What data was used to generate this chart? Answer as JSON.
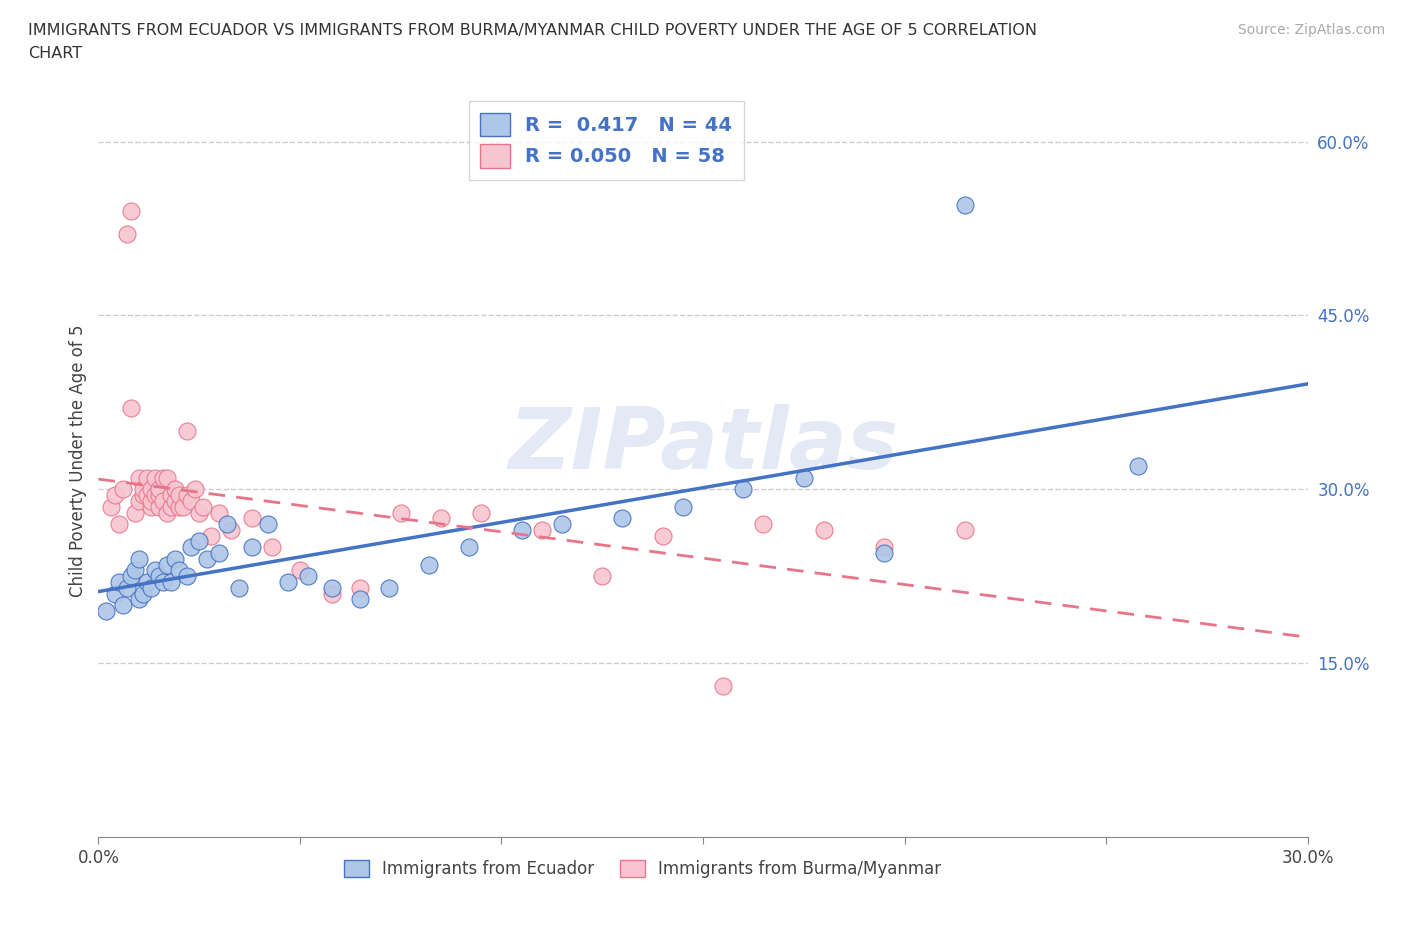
{
  "title_line1": "IMMIGRANTS FROM ECUADOR VS IMMIGRANTS FROM BURMA/MYANMAR CHILD POVERTY UNDER THE AGE OF 5 CORRELATION",
  "title_line2": "CHART",
  "source": "Source: ZipAtlas.com",
  "ylabel": "Child Poverty Under the Age of 5",
  "xlim": [
    0.0,
    0.3
  ],
  "ylim": [
    0.0,
    0.65
  ],
  "x_ticks": [
    0.0,
    0.05,
    0.1,
    0.15,
    0.2,
    0.25,
    0.3
  ],
  "x_tick_labels": [
    "0.0%",
    "",
    "",
    "",
    "",
    "",
    "30.0%"
  ],
  "y_ticks_right": [
    0.15,
    0.3,
    0.45,
    0.6
  ],
  "y_tick_labels_right": [
    "15.0%",
    "30.0%",
    "45.0%",
    "60.0%"
  ],
  "R_ecuador": 0.417,
  "N_ecuador": 44,
  "R_burma": 0.05,
  "N_burma": 58,
  "watermark": "ZIPatlas",
  "ecuador_face_color": "#aec6e8",
  "ecuador_edge_color": "#4472c4",
  "burma_face_color": "#f7c5d0",
  "burma_edge_color": "#e8748a",
  "ecuador_line_color": "#4472c4",
  "burma_line_color": "#e8748a",
  "ecuador_scatter_x": [
    0.002,
    0.004,
    0.005,
    0.006,
    0.007,
    0.008,
    0.009,
    0.01,
    0.01,
    0.011,
    0.012,
    0.013,
    0.014,
    0.015,
    0.016,
    0.017,
    0.018,
    0.019,
    0.02,
    0.022,
    0.023,
    0.025,
    0.027,
    0.03,
    0.032,
    0.035,
    0.038,
    0.042,
    0.047,
    0.052,
    0.058,
    0.065,
    0.072,
    0.082,
    0.092,
    0.105,
    0.115,
    0.13,
    0.145,
    0.16,
    0.175,
    0.195,
    0.215,
    0.258
  ],
  "ecuador_scatter_y": [
    0.195,
    0.21,
    0.22,
    0.2,
    0.215,
    0.225,
    0.23,
    0.205,
    0.24,
    0.21,
    0.22,
    0.215,
    0.23,
    0.225,
    0.22,
    0.235,
    0.22,
    0.24,
    0.23,
    0.225,
    0.25,
    0.255,
    0.24,
    0.245,
    0.27,
    0.215,
    0.25,
    0.27,
    0.22,
    0.225,
    0.215,
    0.205,
    0.215,
    0.235,
    0.25,
    0.265,
    0.27,
    0.275,
    0.285,
    0.3,
    0.31,
    0.245,
    0.545,
    0.32
  ],
  "burma_scatter_x": [
    0.003,
    0.004,
    0.005,
    0.006,
    0.007,
    0.008,
    0.008,
    0.009,
    0.01,
    0.01,
    0.011,
    0.011,
    0.012,
    0.012,
    0.013,
    0.013,
    0.013,
    0.014,
    0.014,
    0.015,
    0.015,
    0.015,
    0.016,
    0.016,
    0.017,
    0.017,
    0.018,
    0.018,
    0.019,
    0.019,
    0.02,
    0.02,
    0.021,
    0.022,
    0.022,
    0.023,
    0.024,
    0.025,
    0.026,
    0.028,
    0.03,
    0.033,
    0.038,
    0.043,
    0.05,
    0.058,
    0.065,
    0.075,
    0.085,
    0.095,
    0.11,
    0.125,
    0.14,
    0.155,
    0.165,
    0.18,
    0.195,
    0.215
  ],
  "burma_scatter_y": [
    0.285,
    0.295,
    0.27,
    0.3,
    0.52,
    0.54,
    0.37,
    0.28,
    0.29,
    0.31,
    0.295,
    0.3,
    0.295,
    0.31,
    0.285,
    0.29,
    0.3,
    0.295,
    0.31,
    0.285,
    0.295,
    0.3,
    0.29,
    0.31,
    0.28,
    0.31,
    0.285,
    0.295,
    0.29,
    0.3,
    0.285,
    0.295,
    0.285,
    0.295,
    0.35,
    0.29,
    0.3,
    0.28,
    0.285,
    0.26,
    0.28,
    0.265,
    0.275,
    0.25,
    0.23,
    0.21,
    0.215,
    0.28,
    0.275,
    0.28,
    0.265,
    0.225,
    0.26,
    0.13,
    0.27,
    0.265,
    0.25,
    0.265
  ]
}
